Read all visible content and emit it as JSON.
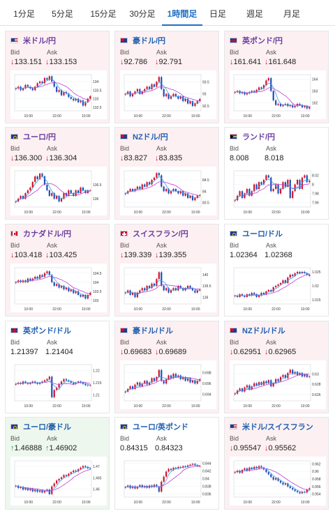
{
  "tabs": [
    {
      "label": "1分足",
      "active": false
    },
    {
      "label": "5分足",
      "active": false
    },
    {
      "label": "15分足",
      "active": false
    },
    {
      "label": "30分足",
      "active": false
    },
    {
      "label": "1時間足",
      "active": true
    },
    {
      "label": "日足",
      "active": false
    },
    {
      "label": "週足",
      "active": false
    },
    {
      "label": "月足",
      "active": false
    }
  ],
  "bid_label": "Bid",
  "ask_label": "Ask",
  "colors": {
    "up": "#d0122a",
    "down": "#1f4fb8",
    "ma_a": "#c23bd6",
    "ma_b": "#3aa0e6",
    "accent": "#1f6fc5"
  },
  "cards": [
    {
      "pair": "米ドル/円",
      "flag": "us",
      "title_color": "purple",
      "state": "down",
      "bid": "133.151",
      "ask": "133.153",
      "bid_dir": "down",
      "ask_dir": "down",
      "chart": {
        "x_ticks": [
          "10:00",
          "22:00",
          "10:00"
        ],
        "y_ticks": [
          "134",
          "133.5",
          "133",
          "132.5"
        ],
        "ymin": 132.3,
        "ymax": 134.4,
        "closes": [
          133.6,
          133.7,
          133.5,
          133.6,
          133.8,
          133.7,
          133.6,
          133.5,
          133.7,
          133.9,
          134.0,
          133.9,
          134.2,
          134.1,
          134.3,
          134.0,
          133.7,
          133.4,
          133.5,
          133.2,
          133.4,
          133.3,
          133.1,
          133.0,
          132.9,
          133.0,
          132.8,
          132.9,
          132.6,
          132.8,
          133.0,
          133.15
        ]
      }
    },
    {
      "pair": "豪ドル/円",
      "flag": "au",
      "title_color": "blue",
      "state": "down",
      "bid": "92.786",
      "ask": "92.791",
      "bid_dir": "down",
      "ask_dir": "down",
      "chart": {
        "x_ticks": [
          "10:00",
          "22:00",
          "10:00"
        ],
        "y_ticks": [
          "93.5",
          "93",
          "92.5"
        ],
        "ymin": 92.3,
        "ymax": 93.8,
        "closes": [
          93.0,
          93.1,
          92.9,
          93.0,
          93.1,
          93.2,
          93.0,
          93.1,
          93.2,
          93.3,
          93.2,
          93.4,
          93.3,
          93.5,
          93.7,
          93.2,
          92.9,
          93.0,
          92.8,
          92.9,
          93.0,
          92.9,
          92.8,
          92.9,
          92.7,
          92.8,
          92.6,
          92.7,
          92.5,
          92.6,
          92.7,
          92.79
        ]
      }
    },
    {
      "pair": "英ポンド/円",
      "flag": "gb",
      "title_color": "purple",
      "state": "down",
      "bid": "161.641",
      "ask": "161.648",
      "bid_dir": "down",
      "ask_dir": "down",
      "chart": {
        "x_ticks": [
          "10:00",
          "22:00",
          "10:00"
        ],
        "y_ticks": [
          "164",
          "163",
          "162"
        ],
        "ymin": 161.3,
        "ymax": 164.4,
        "closes": [
          162.9,
          163.0,
          162.8,
          162.9,
          162.7,
          162.8,
          162.9,
          163.0,
          162.9,
          163.1,
          163.3,
          163.2,
          163.5,
          163.9,
          164.1,
          163.0,
          162.2,
          161.8,
          161.9,
          161.7,
          161.8,
          161.9,
          161.7,
          161.8,
          161.6,
          161.7,
          161.9,
          161.8,
          161.6,
          161.7,
          161.5,
          161.64
        ]
      }
    },
    {
      "pair": "ユーロ/円",
      "flag": "eu",
      "title_color": "purple",
      "state": "down",
      "bid": "136.300",
      "ask": "136.304",
      "bid_dir": "down",
      "ask_dir": "down",
      "chart": {
        "x_ticks": [
          "10:00",
          "22:00",
          "10:00"
        ],
        "y_ticks": [
          "136.5",
          "136"
        ],
        "ymin": 135.7,
        "ymax": 137.0,
        "closes": [
          135.9,
          136.0,
          136.1,
          136.0,
          136.2,
          136.3,
          136.4,
          136.6,
          136.8,
          136.7,
          136.9,
          136.8,
          136.5,
          136.3,
          136.1,
          136.2,
          136.0,
          136.1,
          135.9,
          136.0,
          136.2,
          136.1,
          136.3,
          136.2,
          136.1,
          136.3,
          136.2,
          136.4,
          136.3,
          136.2,
          136.3,
          136.3
        ]
      }
    },
    {
      "pair": "NZドル/円",
      "flag": "nz",
      "title_color": "blue",
      "state": "down",
      "bid": "83.827",
      "ask": "83.835",
      "bid_dir": "down",
      "ask_dir": "down",
      "chart": {
        "x_ticks": [
          "10:00",
          "22:00",
          "10:00"
        ],
        "y_ticks": [
          "84.5",
          "84",
          "83.5"
        ],
        "ymin": 83.3,
        "ymax": 84.9,
        "closes": [
          83.9,
          84.0,
          84.1,
          84.0,
          84.1,
          84.2,
          84.1,
          84.3,
          84.2,
          84.4,
          84.3,
          84.5,
          84.6,
          84.8,
          84.7,
          84.2,
          84.0,
          84.1,
          83.9,
          84.0,
          84.1,
          84.0,
          83.9,
          84.0,
          83.8,
          83.9,
          83.7,
          83.8,
          83.6,
          83.7,
          83.8,
          83.83
        ]
      }
    },
    {
      "pair": "ランド/円",
      "flag": "za",
      "title_color": "purple",
      "state": "flat",
      "bid": "8.008",
      "ask": "8.018",
      "bid_dir": "none",
      "ask_dir": "none",
      "chart": {
        "x_ticks": [
          "10:00",
          "22:00",
          "10:00"
        ],
        "y_ticks": [
          "8.02",
          "8",
          "7.98",
          "7.96"
        ],
        "ymin": 7.95,
        "ymax": 8.03,
        "closes": [
          7.965,
          7.975,
          7.985,
          7.97,
          7.98,
          7.99,
          7.975,
          7.985,
          8.0,
          7.99,
          8.005,
          8.0,
          8.01,
          8.02,
          8.015,
          7.985,
          7.99,
          8.0,
          7.98,
          7.99,
          8.005,
          7.995,
          8.01,
          7.97,
          7.985,
          8.0,
          8.01,
          7.99,
          8.015,
          8.02,
          8.005,
          8.008
        ]
      }
    },
    {
      "pair": "カナダドル/円",
      "flag": "ca",
      "title_color": "purple",
      "state": "down",
      "bid": "103.418",
      "ask": "103.425",
      "bid_dir": "down",
      "ask_dir": "down",
      "chart": {
        "x_ticks": [
          "10:00",
          "22:00",
          "10:00"
        ],
        "y_ticks": [
          "104.5",
          "104",
          "103.5",
          "103"
        ],
        "ymin": 102.8,
        "ymax": 104.8,
        "closes": [
          104.0,
          104.1,
          104.0,
          104.1,
          104.0,
          104.2,
          104.1,
          104.2,
          104.3,
          104.2,
          104.4,
          104.3,
          104.5,
          104.6,
          104.4,
          104.0,
          103.8,
          103.9,
          103.7,
          103.8,
          103.6,
          103.7,
          103.5,
          103.6,
          103.4,
          103.5,
          103.3,
          103.2,
          103.3,
          103.1,
          103.3,
          103.42
        ]
      }
    },
    {
      "pair": "スイスフラン/円",
      "flag": "ch",
      "title_color": "purple",
      "state": "down",
      "bid": "139.339",
      "ask": "139.355",
      "bid_dir": "down",
      "ask_dir": "down",
      "chart": {
        "x_ticks": [
          "10:00",
          "22:00",
          "10:00"
        ],
        "y_ticks": [
          "140",
          "139.5",
          "139"
        ],
        "ymin": 138.7,
        "ymax": 140.3,
        "closes": [
          139.2,
          139.3,
          139.1,
          139.2,
          139.0,
          139.2,
          139.3,
          139.4,
          139.3,
          139.5,
          139.4,
          139.6,
          139.5,
          139.8,
          140.1,
          139.5,
          139.3,
          139.4,
          139.2,
          139.3,
          139.4,
          139.3,
          139.5,
          139.4,
          139.3,
          139.4,
          139.5,
          139.4,
          139.3,
          139.2,
          139.3,
          139.34
        ]
      }
    },
    {
      "pair": "ユーロ/ドル",
      "flag": "eu",
      "title_color": "blue",
      "state": "flat",
      "bid": "1.02364",
      "ask": "1.02368",
      "bid_dir": "none",
      "ask_dir": "none",
      "chart": {
        "x_ticks": [
          "10:00",
          "22:00",
          "10:00"
        ],
        "y_ticks": [
          "1.025",
          "1.02",
          "1.015"
        ],
        "ymin": 1.0135,
        "ymax": 1.0265,
        "closes": [
          1.0165,
          1.016,
          1.017,
          1.0165,
          1.016,
          1.017,
          1.0165,
          1.0175,
          1.017,
          1.016,
          1.0165,
          1.0175,
          1.017,
          1.018,
          1.0185,
          1.018,
          1.0195,
          1.02,
          1.0205,
          1.021,
          1.022,
          1.021,
          1.023,
          1.024,
          1.0235,
          1.0245,
          1.025,
          1.0245,
          1.025,
          1.0245,
          1.024,
          1.0236
        ]
      }
    },
    {
      "pair": "英ポンド/ドル",
      "flag": "gb",
      "title_color": "blue",
      "state": "flat",
      "bid": "1.21397",
      "ask": "1.21404",
      "bid_dir": "none",
      "ask_dir": "none",
      "chart": {
        "x_ticks": [
          "10:00",
          "22:00",
          "10:00"
        ],
        "y_ticks": [
          "1.22",
          "1.215",
          "1.21"
        ],
        "ymin": 1.2075,
        "ymax": 1.2225,
        "closes": [
          1.2145,
          1.215,
          1.2145,
          1.2155,
          1.215,
          1.2145,
          1.215,
          1.2155,
          1.215,
          1.2145,
          1.215,
          1.2155,
          1.216,
          1.2165,
          1.2175,
          1.209,
          1.212,
          1.213,
          1.2145,
          1.2155,
          1.2165,
          1.216,
          1.2155,
          1.215,
          1.2145,
          1.215,
          1.2155,
          1.215,
          1.2145,
          1.214,
          1.2138,
          1.214
        ]
      }
    },
    {
      "pair": "豪ドル/ドル",
      "flag": "au",
      "title_color": "blue",
      "state": "down",
      "bid": "0.69683",
      "ask": "0.69689",
      "bid_dir": "down",
      "ask_dir": "down",
      "chart": {
        "x_ticks": [
          "10:00",
          "22:00",
          "10:00"
        ],
        "y_ticks": [
          "0.698",
          "0.696",
          "0.694"
        ],
        "ymin": 0.6928,
        "ymax": 0.6995,
        "closes": [
          0.6945,
          0.695,
          0.6955,
          0.695,
          0.6958,
          0.6962,
          0.6955,
          0.696,
          0.6965,
          0.6958,
          0.6962,
          0.697,
          0.6965,
          0.6972,
          0.6985,
          0.6965,
          0.696,
          0.6968,
          0.6975,
          0.697,
          0.6978,
          0.6972,
          0.6975,
          0.6968,
          0.6972,
          0.6965,
          0.697,
          0.6962,
          0.6966,
          0.696,
          0.6965,
          0.6968
        ]
      }
    },
    {
      "pair": "NZドル/ドル",
      "flag": "nz",
      "title_color": "blue",
      "state": "down",
      "bid": "0.62951",
      "ask": "0.62965",
      "bid_dir": "down",
      "ask_dir": "down",
      "chart": {
        "x_ticks": [
          "10:00",
          "22:00",
          "10:00"
        ],
        "y_ticks": [
          "0.63",
          "0.628",
          "0.626"
        ],
        "ymin": 0.6248,
        "ymax": 0.6318,
        "closes": [
          0.6262,
          0.6268,
          0.6272,
          0.6266,
          0.6274,
          0.6278,
          0.627,
          0.6276,
          0.6282,
          0.6278,
          0.6284,
          0.6279,
          0.6286,
          0.6282,
          0.6288,
          0.6276,
          0.6282,
          0.629,
          0.6286,
          0.6294,
          0.6298,
          0.6292,
          0.6302,
          0.6308,
          0.63,
          0.6304,
          0.6298,
          0.6302,
          0.6295,
          0.6299,
          0.6294,
          0.6295
        ]
      }
    },
    {
      "pair": "ユーロ/豪ドル",
      "flag": "eu",
      "title_color": "blue",
      "state": "up",
      "bid": "1.46888",
      "ask": "1.46902",
      "bid_dir": "up",
      "ask_dir": "up",
      "chart": {
        "x_ticks": [
          "10:00",
          "22:00",
          "10:00"
        ],
        "y_ticks": [
          "1.47",
          "1.465",
          "1.46"
        ],
        "ymin": 1.4565,
        "ymax": 1.4725,
        "closes": [
          1.4615,
          1.4605,
          1.461,
          1.4598,
          1.4605,
          1.4595,
          1.4602,
          1.459,
          1.4598,
          1.4588,
          1.4595,
          1.4585,
          1.4592,
          1.4598,
          1.4578,
          1.4612,
          1.4625,
          1.4638,
          1.4645,
          1.4652,
          1.4662,
          1.4658,
          1.4668,
          1.4675,
          1.4682,
          1.4678,
          1.4688,
          1.4695,
          1.4702,
          1.4698,
          1.4692,
          1.4689
        ]
      }
    },
    {
      "pair": "ユーロ/英ポンド",
      "flag": "eu",
      "title_color": "blue",
      "state": "flat",
      "bid": "0.84315",
      "ask": "0.84323",
      "bid_dir": "none",
      "ask_dir": "none",
      "chart": {
        "x_ticks": [
          "10:00",
          "22:00",
          "10:00"
        ],
        "y_ticks": [
          "0.844",
          "0.842",
          "0.84",
          "0.838",
          "0.836"
        ],
        "ymin": 0.8352,
        "ymax": 0.8446,
        "closes": [
          0.8378,
          0.8382,
          0.8375,
          0.838,
          0.8374,
          0.8379,
          0.8383,
          0.8377,
          0.8381,
          0.8376,
          0.8382,
          0.8378,
          0.8384,
          0.8379,
          0.8366,
          0.8392,
          0.8405,
          0.8418,
          0.8425,
          0.8422,
          0.8428,
          0.8426,
          0.843,
          0.8428,
          0.8432,
          0.843,
          0.8434,
          0.8436,
          0.8438,
          0.8434,
          0.8432,
          0.8432
        ]
      }
    },
    {
      "pair": "米ドル/スイスフラン",
      "flag": "us",
      "title_color": "blue",
      "state": "down",
      "bid": "0.95547",
      "ask": "0.95562",
      "bid_dir": "down",
      "ask_dir": "down",
      "chart": {
        "x_ticks": [
          "10:00",
          "22:00",
          "10:00"
        ],
        "y_ticks": [
          "0.962",
          "0.96",
          "0.958",
          "0.956",
          "0.954"
        ],
        "ymin": 0.9532,
        "ymax": 0.9628,
        "closes": [
          0.9598,
          0.9602,
          0.9596,
          0.9604,
          0.9608,
          0.9602,
          0.961,
          0.9606,
          0.9612,
          0.9608,
          0.9614,
          0.961,
          0.9605,
          0.9598,
          0.9592,
          0.9585,
          0.9578,
          0.9582,
          0.9575,
          0.957,
          0.9565,
          0.9568,
          0.956,
          0.9556,
          0.9552,
          0.9548,
          0.9545,
          0.9542,
          0.9546,
          0.9544,
          0.9552,
          0.9555
        ]
      }
    }
  ]
}
